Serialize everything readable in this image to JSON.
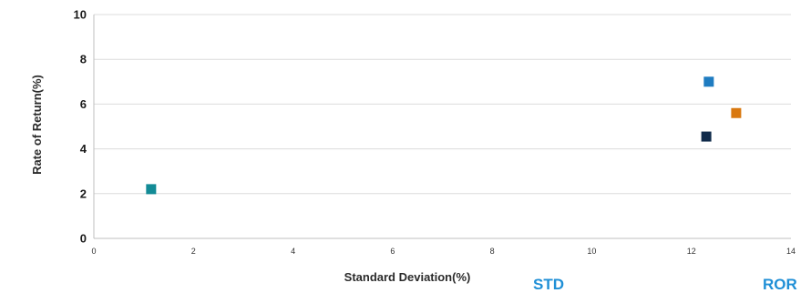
{
  "chart_data": {
    "type": "scatter",
    "title": "",
    "xlabel": "Standard Deviation(%)",
    "ylabel": "Rate of Return(%)",
    "xlim": [
      0,
      14
    ],
    "ylim": [
      0,
      10
    ],
    "x_ticks": [
      "0",
      "2",
      "4",
      "6",
      "8",
      "10",
      "12",
      "14"
    ],
    "y_ticks": [
      "0",
      "2",
      "4",
      "6",
      "8",
      "10"
    ],
    "grid": "horizontal",
    "marker": "square",
    "points": [
      {
        "x": 1.15,
        "y": 2.2,
        "color": "#138b96"
      },
      {
        "x": 12.35,
        "y": 7.0,
        "color": "#1f7cc1"
      },
      {
        "x": 12.9,
        "y": 5.6,
        "color": "#d9780f"
      },
      {
        "x": 12.3,
        "y": 4.55,
        "color": "#0f2a4a"
      }
    ]
  },
  "legend": {
    "items": [
      {
        "label": "STD",
        "color": "#1f8fd6"
      },
      {
        "label": "ROR",
        "color": "#1f8fd6"
      }
    ]
  }
}
